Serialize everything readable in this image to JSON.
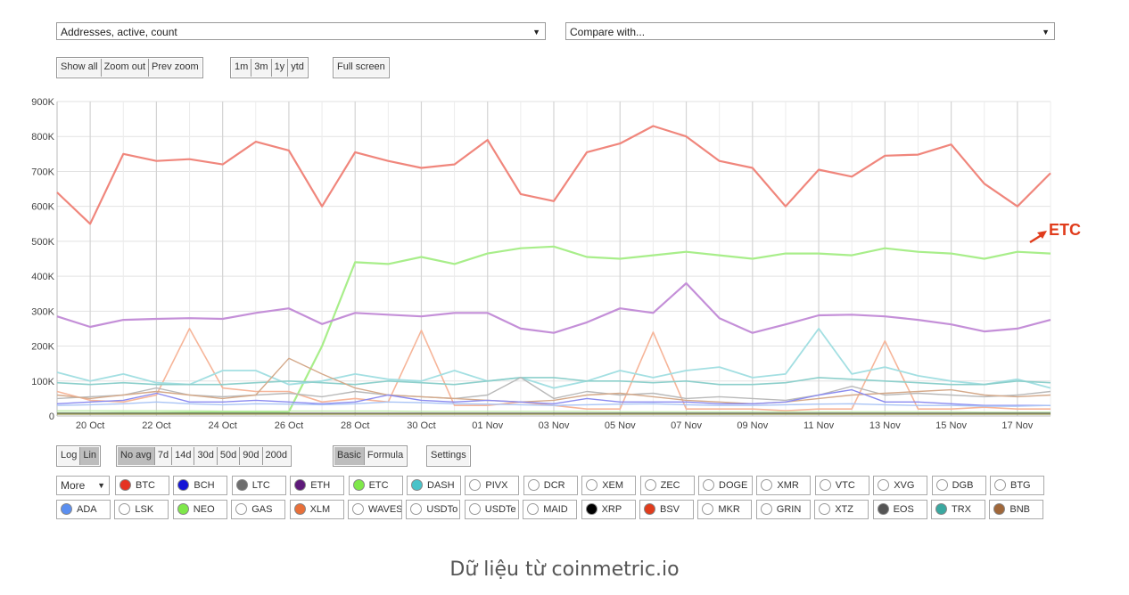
{
  "controls": {
    "metric_select": "Addresses, active, count",
    "compare_select": "Compare with...",
    "zoom_buttons": [
      "Show all",
      "Zoom out",
      "Prev zoom"
    ],
    "range_buttons": [
      "1m",
      "3m",
      "1y",
      "ytd"
    ],
    "fullscreen": "Full screen",
    "scale_buttons": [
      "Log",
      "Lin"
    ],
    "scale_active": "Lin",
    "avg_buttons": [
      "No avg",
      "7d",
      "14d",
      "30d",
      "50d",
      "90d",
      "200d"
    ],
    "avg_active": "No avg",
    "mode_buttons": [
      "Basic",
      "Formula"
    ],
    "mode_active": "Basic",
    "settings": "Settings",
    "more": "More"
  },
  "coins_row1": [
    {
      "label": "BTC",
      "color": "#e53222",
      "checked": true
    },
    {
      "label": "BCH",
      "color": "#1515d6",
      "checked": true
    },
    {
      "label": "LTC",
      "color": "#6e6e6e",
      "checked": true
    },
    {
      "label": "ETH",
      "color": "#5e1a7a",
      "checked": true
    },
    {
      "label": "ETC",
      "color": "#7fe84a",
      "checked": true
    },
    {
      "label": "DASH",
      "color": "#49c3c9",
      "checked": true
    },
    {
      "label": "PIVX",
      "color": "#ffffff",
      "checked": false
    },
    {
      "label": "DCR",
      "color": "#ffffff",
      "checked": false
    },
    {
      "label": "XEM",
      "color": "#ffffff",
      "checked": false
    },
    {
      "label": "ZEC",
      "color": "#ffffff",
      "checked": false
    },
    {
      "label": "DOGE",
      "color": "#ffffff",
      "checked": false
    },
    {
      "label": "XMR",
      "color": "#ffffff",
      "checked": false
    },
    {
      "label": "VTC",
      "color": "#ffffff",
      "checked": false
    },
    {
      "label": "XVG",
      "color": "#ffffff",
      "checked": false
    },
    {
      "label": "DGB",
      "color": "#ffffff",
      "checked": false
    },
    {
      "label": "BTG",
      "color": "#ffffff",
      "checked": false
    }
  ],
  "coins_row2": [
    {
      "label": "ADA",
      "color": "#5b8ff0",
      "checked": true
    },
    {
      "label": "LSK",
      "color": "#ffffff",
      "checked": false
    },
    {
      "label": "NEO",
      "color": "#7fe84a",
      "checked": true
    },
    {
      "label": "GAS",
      "color": "#ffffff",
      "checked": false
    },
    {
      "label": "XLM",
      "color": "#e8703a",
      "checked": true
    },
    {
      "label": "WAVES",
      "color": "#ffffff",
      "checked": false
    },
    {
      "label": "USDTo",
      "color": "#ffffff",
      "checked": false
    },
    {
      "label": "USDTe",
      "color": "#ffffff",
      "checked": false
    },
    {
      "label": "MAID",
      "color": "#ffffff",
      "checked": false
    },
    {
      "label": "XRP",
      "color": "#000000",
      "checked": true
    },
    {
      "label": "BSV",
      "color": "#e03c1c",
      "checked": true
    },
    {
      "label": "MKR",
      "color": "#ffffff",
      "checked": false
    },
    {
      "label": "GRIN",
      "color": "#ffffff",
      "checked": false
    },
    {
      "label": "XTZ",
      "color": "#ffffff",
      "checked": false
    },
    {
      "label": "EOS",
      "color": "#555555",
      "checked": true
    },
    {
      "label": "TRX",
      "color": "#3aa8a0",
      "checked": true
    },
    {
      "label": "BNB",
      "color": "#a0673a",
      "checked": true
    }
  ],
  "annotation": "ETC",
  "caption": "Dữ liệu từ coinmetric.io",
  "chart_data": {
    "type": "line",
    "title": "",
    "xlabel": "",
    "ylabel": "",
    "ylim": [
      0,
      900000
    ],
    "yticks": [
      "0",
      "100K",
      "200K",
      "300K",
      "400K",
      "500K",
      "600K",
      "700K",
      "800K",
      "900K"
    ],
    "xticks": [
      "20 Oct",
      "22 Oct",
      "24 Oct",
      "26 Oct",
      "28 Oct",
      "30 Oct",
      "01 Nov",
      "03 Nov",
      "05 Nov",
      "07 Nov",
      "09 Nov",
      "11 Nov",
      "13 Nov",
      "15 Nov",
      "17 Nov"
    ],
    "grid": true,
    "x": [
      "19 Oct",
      "20 Oct",
      "21 Oct",
      "22 Oct",
      "23 Oct",
      "24 Oct",
      "25 Oct",
      "26 Oct",
      "27 Oct",
      "28 Oct",
      "29 Oct",
      "30 Oct",
      "31 Oct",
      "01 Nov",
      "02 Nov",
      "03 Nov",
      "04 Nov",
      "05 Nov",
      "06 Nov",
      "07 Nov",
      "08 Nov",
      "09 Nov",
      "10 Nov",
      "11 Nov",
      "12 Nov",
      "13 Nov",
      "14 Nov",
      "15 Nov",
      "16 Nov",
      "17 Nov",
      "18 Nov"
    ],
    "series": [
      {
        "name": "BTC",
        "color": "#f0867c",
        "width": 2.2,
        "values": [
          640000,
          550000,
          750000,
          730000,
          735000,
          720000,
          785000,
          760000,
          600000,
          755000,
          730000,
          710000,
          720000,
          790000,
          635000,
          615000,
          755000,
          780000,
          830000,
          800000,
          730000,
          710000,
          600000,
          705000,
          685000,
          745000,
          748000,
          777000,
          665000,
          600000,
          695000
        ]
      },
      {
        "name": "ETC",
        "color": "#a8ee8a",
        "width": 2.2,
        "values": [
          8000,
          8000,
          9000,
          9000,
          10000,
          10000,
          10000,
          12000,
          200000,
          440000,
          435000,
          455000,
          435000,
          465000,
          480000,
          485000,
          455000,
          450000,
          460000,
          470000,
          460000,
          450000,
          465000,
          465000,
          460000,
          480000,
          470000,
          465000,
          450000,
          470000,
          465000
        ]
      },
      {
        "name": "ETH",
        "color": "#c48fd8",
        "width": 2.2,
        "values": [
          285000,
          255000,
          275000,
          278000,
          280000,
          278000,
          295000,
          308000,
          263000,
          295000,
          290000,
          285000,
          295000,
          295000,
          250000,
          238000,
          268000,
          308000,
          295000,
          380000,
          280000,
          238000,
          262000,
          288000,
          290000,
          285000,
          275000,
          262000,
          242000,
          250000,
          275000
        ]
      },
      {
        "name": "XLM",
        "color": "#f6b599",
        "width": 1.6,
        "values": [
          70000,
          45000,
          40000,
          60000,
          250000,
          80000,
          70000,
          70000,
          40000,
          50000,
          40000,
          245000,
          30000,
          30000,
          40000,
          30000,
          20000,
          20000,
          240000,
          20000,
          20000,
          20000,
          15000,
          20000,
          20000,
          215000,
          20000,
          20000,
          25000,
          20000,
          20000
        ]
      },
      {
        "name": "DASH",
        "color": "#a3dfe2",
        "width": 1.8,
        "values": [
          125000,
          100000,
          120000,
          95000,
          90000,
          130000,
          130000,
          90000,
          100000,
          120000,
          105000,
          100000,
          130000,
          100000,
          110000,
          80000,
          100000,
          130000,
          110000,
          130000,
          140000,
          110000,
          120000,
          250000,
          120000,
          140000,
          115000,
          100000,
          90000,
          105000,
          80000
        ]
      },
      {
        "name": "TRX",
        "color": "#8ccfcb",
        "width": 1.6,
        "values": [
          95000,
          90000,
          95000,
          90000,
          90000,
          90000,
          95000,
          100000,
          95000,
          90000,
          100000,
          95000,
          90000,
          100000,
          110000,
          110000,
          100000,
          100000,
          95000,
          100000,
          90000,
          90000,
          95000,
          110000,
          105000,
          100000,
          95000,
          90000,
          90000,
          100000,
          95000
        ]
      },
      {
        "name": "LTC",
        "color": "#b9b9b9",
        "width": 1.4,
        "values": [
          50000,
          55000,
          60000,
          80000,
          60000,
          55000,
          60000,
          65000,
          55000,
          70000,
          60000,
          55000,
          50000,
          60000,
          110000,
          50000,
          70000,
          60000,
          65000,
          50000,
          55000,
          50000,
          45000,
          60000,
          85000,
          60000,
          65000,
          60000,
          55000,
          60000,
          70000
        ]
      },
      {
        "name": "BNB",
        "color": "#d4a98a",
        "width": 1.4,
        "values": [
          60000,
          50000,
          60000,
          70000,
          60000,
          50000,
          60000,
          165000,
          120000,
          80000,
          60000,
          55000,
          50000,
          45000,
          40000,
          45000,
          60000,
          65000,
          55000,
          45000,
          40000,
          35000,
          40000,
          50000,
          60000,
          65000,
          70000,
          75000,
          60000,
          55000,
          60000
        ]
      },
      {
        "name": "BCH",
        "color": "#8a8af0",
        "width": 1.4,
        "values": [
          35000,
          40000,
          45000,
          65000,
          40000,
          40000,
          45000,
          40000,
          35000,
          40000,
          60000,
          45000,
          40000,
          45000,
          40000,
          35000,
          50000,
          40000,
          40000,
          40000,
          35000,
          35000,
          40000,
          60000,
          75000,
          40000,
          40000,
          35000,
          30000,
          30000,
          30000
        ]
      },
      {
        "name": "ADA",
        "color": "#a9c4f5",
        "width": 1.4,
        "values": [
          30000,
          32000,
          35000,
          40000,
          35000,
          32000,
          35000,
          34000,
          32000,
          35000,
          40000,
          38000,
          35000,
          34000,
          32000,
          30000,
          32000,
          34000,
          35000,
          32000,
          30000,
          30000,
          32000,
          34000,
          35000,
          32000,
          30000,
          30000,
          28000,
          28000,
          30000
        ]
      },
      {
        "name": "NEO",
        "color": "#b8e8a0",
        "width": 1.2,
        "values": [
          15000,
          15000,
          15000,
          15000,
          15000,
          14000,
          14000,
          14000,
          14000,
          14000,
          14000,
          13000,
          13000,
          13000,
          13000,
          13000,
          13000,
          12000,
          12000,
          12000,
          12000,
          12000,
          12000,
          12000,
          12000,
          12000,
          12000,
          12000,
          11000,
          11000,
          11000
        ]
      },
      {
        "name": "XRP",
        "color": "#6b6b6b",
        "width": 1.2,
        "values": [
          8000,
          8000,
          8000,
          8000,
          8000,
          8000,
          8000,
          8000,
          8000,
          8000,
          8000,
          8000,
          8000,
          8000,
          8000,
          8000,
          8000,
          8000,
          8000,
          8000,
          8000,
          8000,
          8000,
          8000,
          8000,
          8000,
          8000,
          8000,
          8000,
          8000,
          8000
        ]
      },
      {
        "name": "EOS",
        "color": "#9a9a4a",
        "width": 1.2,
        "values": [
          5000,
          5000,
          5000,
          5000,
          5000,
          5000,
          5000,
          5000,
          5000,
          5000,
          5000,
          5000,
          5000,
          5000,
          5000,
          5000,
          5000,
          5000,
          5000,
          5000,
          5000,
          5000,
          5000,
          5000,
          5000,
          5000,
          5000,
          5000,
          5000,
          5000,
          5000
        ]
      }
    ]
  }
}
